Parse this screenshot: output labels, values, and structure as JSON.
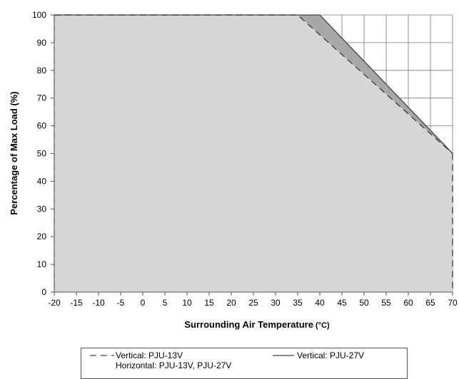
{
  "chart_data": {
    "type": "area",
    "xlabel": "Surrounding Air Temperature",
    "xlabel_unit": "(°C)",
    "ylabel": "Percentage of Max Load (%)",
    "xlim": [
      -20,
      70
    ],
    "ylim": [
      0,
      100
    ],
    "x_ticks": [
      -20,
      -15,
      -10,
      -5,
      0,
      5,
      10,
      15,
      20,
      25,
      30,
      35,
      40,
      45,
      50,
      55,
      60,
      65,
      70
    ],
    "y_ticks": [
      0,
      10,
      20,
      30,
      40,
      50,
      60,
      70,
      80,
      90,
      100
    ],
    "grid": true,
    "series": [
      {
        "name": "Vertical: PJU-13V\nHorizontal: PJU-13V, PJU-27V",
        "style": "dashed",
        "x": [
          -20,
          35,
          70
        ],
        "y": [
          100,
          100,
          50
        ]
      },
      {
        "name": "Vertical: PJU-27V",
        "style": "solid",
        "x": [
          -20,
          40,
          70
        ],
        "y": [
          100,
          100,
          50
        ]
      }
    ],
    "colors": {
      "fill_light": "#d6d6d6",
      "fill_dark": "#a8a8a8",
      "line": "#444444",
      "grid": "#777777"
    }
  },
  "legend": {
    "dashed_line1": "Vertical: PJU-13V",
    "dashed_line2": "Horizontal: PJU-13V, PJU-27V",
    "solid_line1": "Vertical: PJU-27V"
  }
}
